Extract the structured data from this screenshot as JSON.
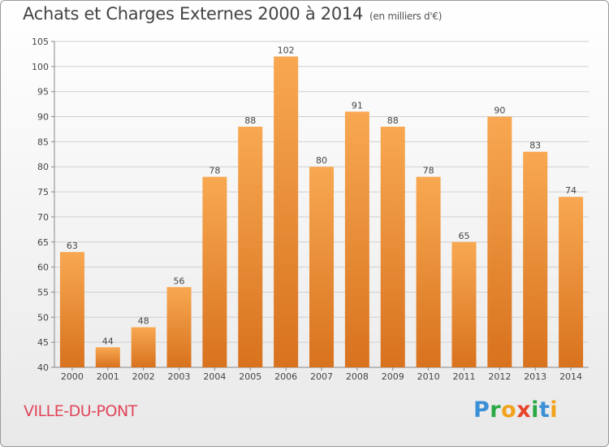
{
  "title": "Achats et Charges Externes 2000 à 2014",
  "subtitle": "(en milliers d'€)",
  "place": "VILLE-DU-PONT",
  "logo": {
    "text": "Proxiti"
  },
  "colors": {
    "bar_top": "#f7a34f",
    "bar_bottom": "#d9731f",
    "grid": "#d0d0d0",
    "title": "#444444",
    "place": "#e0455a"
  },
  "chart_data": {
    "type": "bar",
    "title": "Achats et Charges Externes 2000 à 2014",
    "subtitle": "(en milliers d'€)",
    "xlabel": "",
    "ylabel": "",
    "categories": [
      "2000",
      "2001",
      "2002",
      "2003",
      "2004",
      "2005",
      "2006",
      "2007",
      "2008",
      "2009",
      "2010",
      "2011",
      "2012",
      "2013",
      "2014"
    ],
    "values": [
      63,
      44,
      48,
      56,
      78,
      88,
      102,
      80,
      91,
      88,
      78,
      65,
      90,
      83,
      74
    ],
    "ylim": [
      40,
      105
    ],
    "yticks": [
      40,
      45,
      50,
      55,
      60,
      65,
      70,
      75,
      80,
      85,
      90,
      95,
      100,
      105
    ],
    "grid": true,
    "data_labels": true
  }
}
